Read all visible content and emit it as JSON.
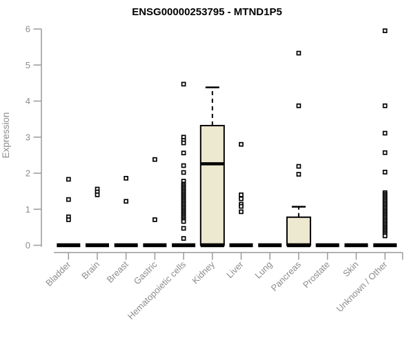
{
  "page": {
    "title": "ENSG00000253795 - MTND1P5"
  },
  "chart_data": {
    "type": "box",
    "title": "ENSG00000253795 - MTND1P5",
    "xlabel": "",
    "ylabel": "Expression",
    "ylim": [
      0,
      6
    ],
    "yticks": [
      0,
      1,
      2,
      3,
      4,
      5,
      6
    ],
    "grid": false,
    "legend": "none",
    "background": "#ffffff",
    "box_fill": "#EDE8D0",
    "box_stroke": "#000000",
    "axis_color": "#999999",
    "label_color": "#8C8C8C",
    "categories": [
      "Bladder",
      "Brain",
      "Breast",
      "Gastric",
      "Hematopoietic cells",
      "Kidney",
      "Liver",
      "Lung",
      "Pancreas",
      "Prostate",
      "Skin",
      "Unknown / Other"
    ],
    "series": [
      {
        "category": "Bladder",
        "min": 0,
        "q1": 0,
        "median": 0,
        "q3": 0,
        "whisker_high": 0,
        "outliers": [
          1.83,
          1.27,
          0.79,
          0.71
        ]
      },
      {
        "category": "Brain",
        "min": 0,
        "q1": 0,
        "median": 0,
        "q3": 0,
        "whisker_high": 0,
        "outliers": [
          1.56,
          1.48,
          1.4
        ]
      },
      {
        "category": "Breast",
        "min": 0,
        "q1": 0,
        "median": 0,
        "q3": 0,
        "whisker_high": 0,
        "outliers": [
          1.86,
          1.22
        ]
      },
      {
        "category": "Gastric",
        "min": 0,
        "q1": 0,
        "median": 0,
        "q3": 0,
        "whisker_high": 0,
        "outliers": [
          2.38,
          0.71
        ]
      },
      {
        "category": "Hematopoietic cells",
        "min": 0,
        "q1": 0,
        "median": 0,
        "q3": 0,
        "whisker_high": 0,
        "outliers": [
          4.47,
          3.0,
          2.91,
          2.84,
          2.56,
          2.21,
          2.02,
          1.78,
          1.7,
          1.66,
          1.62,
          1.58,
          1.54,
          1.5,
          1.46,
          1.42,
          1.38,
          1.34,
          1.3,
          1.26,
          1.22,
          1.18,
          1.14,
          1.1,
          1.06,
          1.02,
          0.98,
          0.94,
          0.9,
          0.86,
          0.82,
          0.78,
          0.74,
          0.7,
          0.66,
          0.47,
          0.19
        ]
      },
      {
        "category": "Kidney",
        "min": 0,
        "q1": 0,
        "median": 2.26,
        "q3": 3.32,
        "whisker_high": 4.38,
        "outliers": []
      },
      {
        "category": "Liver",
        "min": 0,
        "q1": 0,
        "median": 0,
        "q3": 0,
        "whisker_high": 0,
        "outliers": [
          2.8,
          1.4,
          1.29,
          1.14,
          1.08,
          0.93
        ]
      },
      {
        "category": "Lung",
        "min": 0,
        "q1": 0,
        "median": 0,
        "q3": 0,
        "whisker_high": 0,
        "outliers": []
      },
      {
        "category": "Pancreas",
        "min": 0,
        "q1": 0,
        "median": 0,
        "q3": 0.78,
        "whisker_high": 1.07,
        "outliers": [
          5.33,
          3.87,
          2.19,
          1.97
        ]
      },
      {
        "category": "Prostate",
        "min": 0,
        "q1": 0,
        "median": 0,
        "q3": 0,
        "whisker_high": 0,
        "outliers": []
      },
      {
        "category": "Skin",
        "min": 0,
        "q1": 0,
        "median": 0,
        "q3": 0,
        "whisker_high": 0,
        "outliers": []
      },
      {
        "category": "Unknown / Other",
        "min": 0,
        "q1": 0,
        "median": 0,
        "q3": 0,
        "whisker_high": 0,
        "outliers": [
          5.95,
          3.87,
          3.11,
          2.57,
          2.03,
          1.46,
          1.42,
          1.38,
          1.34,
          1.3,
          1.26,
          1.22,
          1.18,
          1.14,
          1.1,
          1.06,
          1.02,
          0.98,
          0.94,
          0.9,
          0.86,
          0.82,
          0.78,
          0.74,
          0.7,
          0.66,
          0.62,
          0.58,
          0.54,
          0.5,
          0.46,
          0.42,
          0.38,
          0.34,
          0.3,
          0.26
        ]
      }
    ]
  }
}
